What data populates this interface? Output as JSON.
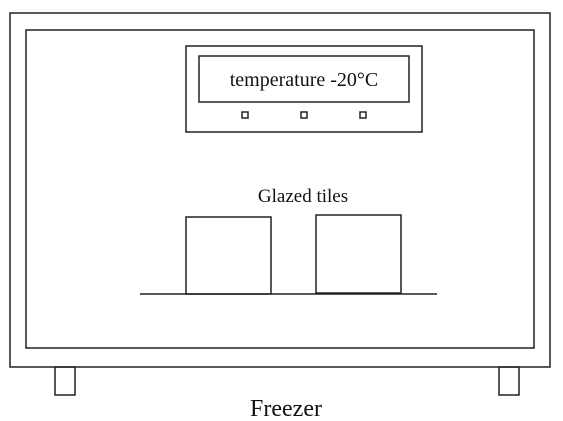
{
  "display": {
    "label": "temperature -20°C"
  },
  "tiles": {
    "label": "Glazed tiles"
  },
  "caption": "Freezer"
}
